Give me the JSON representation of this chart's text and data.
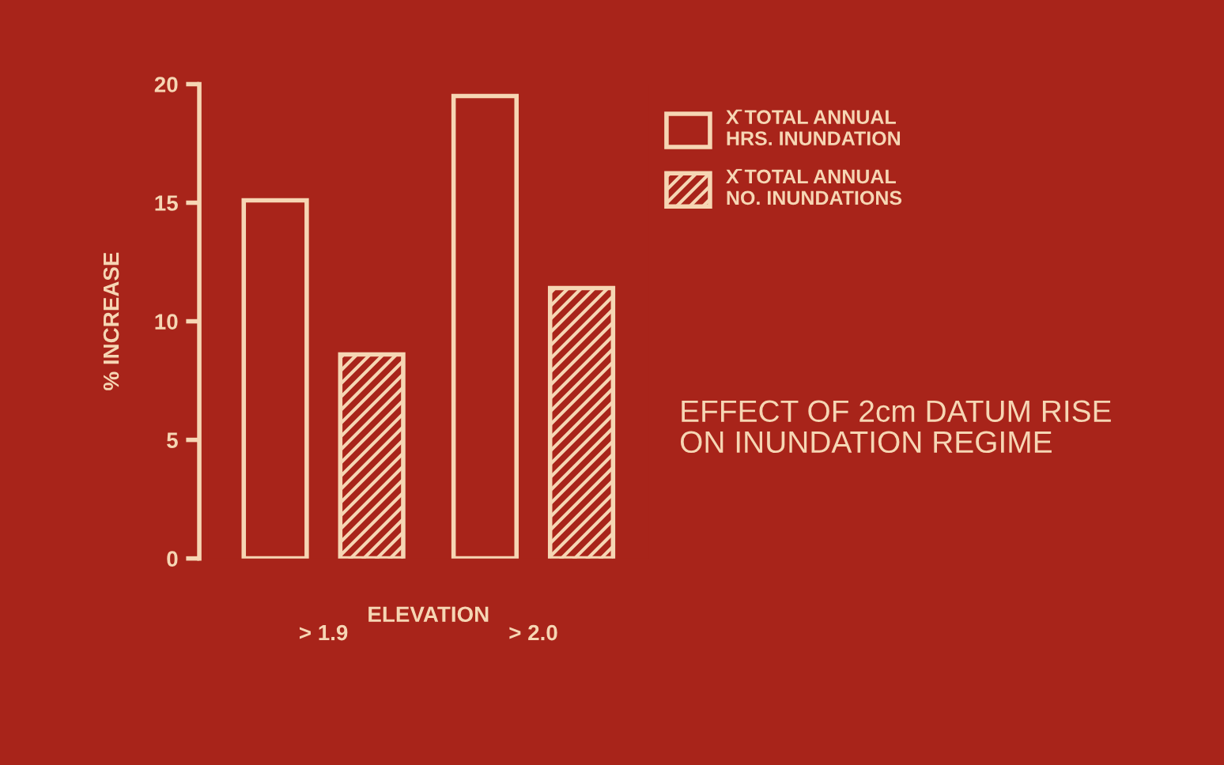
{
  "chart_data": {
    "type": "bar",
    "ylabel": "% INCREASE",
    "xlabel": "ELEVATION",
    "categories": [
      "> 1.9",
      "> 2.0"
    ],
    "series": [
      {
        "name": "X̄ TOTAL ANNUAL\nHRS. INUNDATION",
        "color": "#f6d6b4",
        "values": [
          15.1,
          19.5
        ]
      },
      {
        "name": "X̄ TOTAL ANNUAL\nNO. INUNDATIONS",
        "color": "#f6d6b4",
        "values": [
          8.6,
          11.4
        ]
      }
    ],
    "ylim": [
      0,
      20
    ],
    "yticks": [
      0,
      5,
      10,
      15,
      20
    ],
    "grid": false,
    "legend": "top right",
    "annotations": [
      "EFFECT OF 2cm DATUM RISE\nON INUNDATION REGIME"
    ]
  }
}
